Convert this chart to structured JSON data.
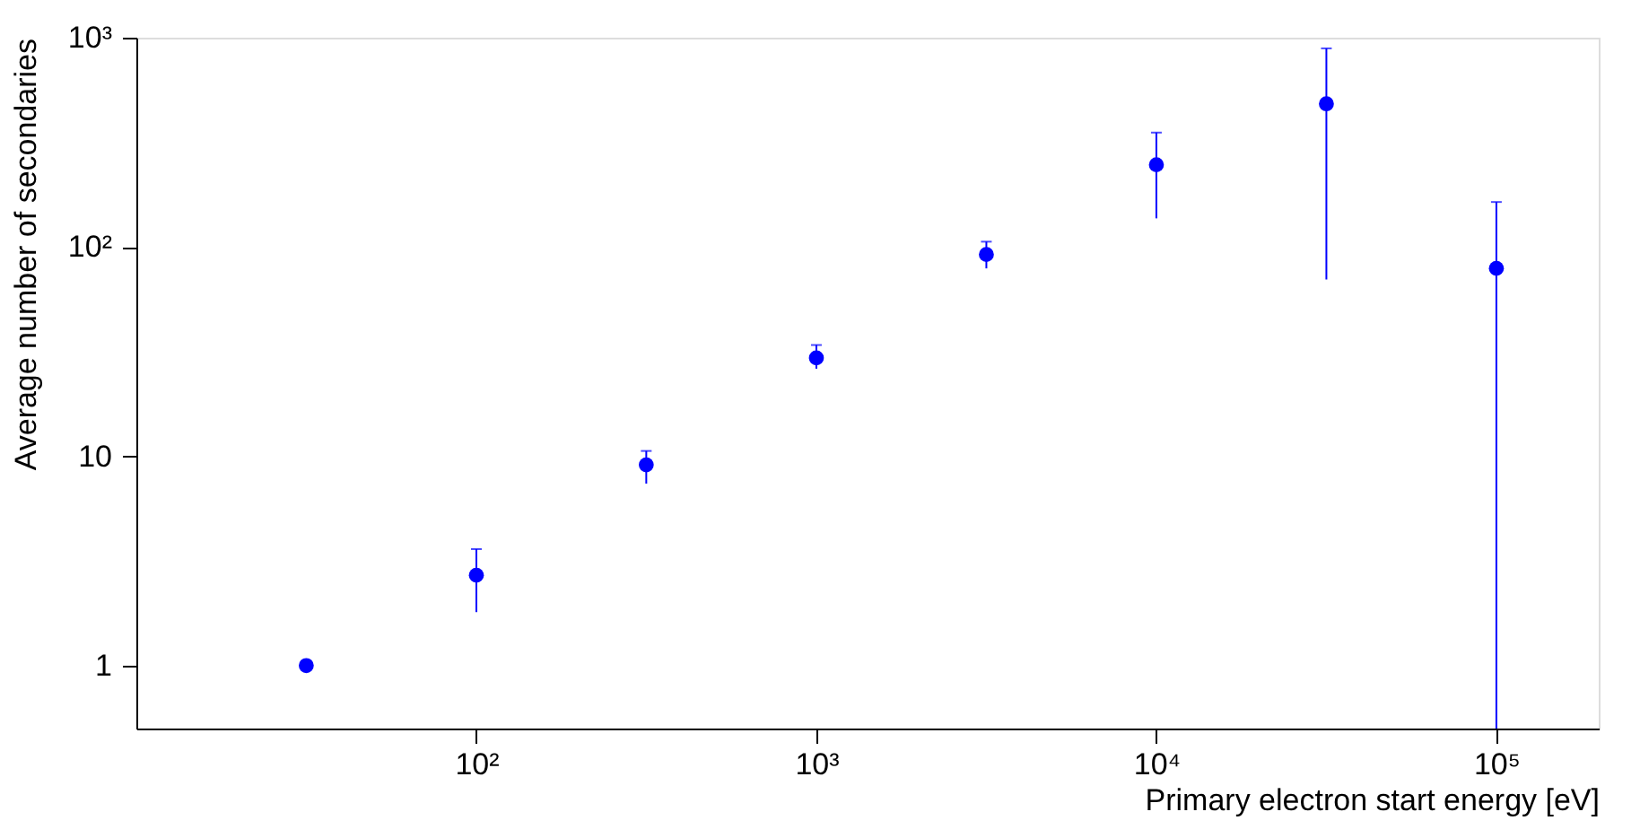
{
  "chart_data": {
    "type": "scatter",
    "xlabel": "Primary electron start energy [eV]",
    "ylabel": "Average number of secondaries",
    "x": [
      31.6,
      100,
      316,
      1000,
      3162,
      10000,
      31623,
      100000
    ],
    "series": [
      {
        "color": "#0000ff",
        "values": [
          1.0,
          2.7,
          9.1,
          29.5,
          92,
          247,
          483,
          79
        ],
        "errors": [
          null,
          [
            1.8,
            3.6
          ],
          [
            7.4,
            10.6
          ],
          [
            26.2,
            34
          ],
          [
            79,
            106
          ],
          [
            137,
            352
          ],
          [
            70,
            889
          ],
          [
            0.5,
            164
          ]
        ]
      }
    ],
    "log": "xy",
    "marker": "circle",
    "grid": false,
    "xlim": [
      10,
      200000
    ],
    "ylim": [
      0.5,
      1000
    ],
    "xticks": [
      {
        "value": 100,
        "label": "10²"
      },
      {
        "value": 1000,
        "label": "10³"
      },
      {
        "value": 10000,
        "label": "10⁴"
      },
      {
        "value": 100000,
        "label": "10⁵"
      }
    ],
    "yticks": [
      1,
      10,
      {
        "value": 100,
        "label": "10²"
      },
      {
        "value": 1000,
        "label": "10³"
      }
    ]
  }
}
